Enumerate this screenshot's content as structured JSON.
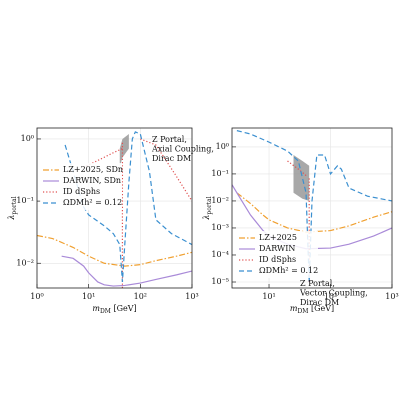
{
  "chart_data": [
    {
      "type": "line",
      "x_label": "mDM [GeV]",
      "y_label": "λportal",
      "log_x": true,
      "log_y": true,
      "grid": true,
      "legend": "center left",
      "annotation": [
        "Z Portal,",
        "Axial Coupling,",
        "Dirac DM"
      ],
      "xlim": [
        1,
        1000
      ],
      "xticks": [
        {
          "value": 1,
          "label": "10⁰"
        },
        {
          "value": 10,
          "label": "10¹"
        },
        {
          "value": 100,
          "label": "10²"
        },
        {
          "value": 1000,
          "label": "10³"
        }
      ],
      "ylim": [
        0.004,
        1.5
      ],
      "yticks": [
        {
          "value": 0.01,
          "label": "10⁻²"
        },
        {
          "value": 0.1,
          "label": "10⁻¹"
        },
        {
          "value": 1,
          "label": "10⁰"
        }
      ],
      "band": {
        "color": "#999999",
        "x": [
          40,
          45,
          60
        ],
        "upper": [
          0.7,
          1.0,
          1.2
        ],
        "lower": [
          0.35,
          0.5,
          0.7
        ]
      },
      "series": [
        {
          "name": "LZ+2025, SDn",
          "color": "#f0a030",
          "style": "dashdot",
          "x": [
            1,
            2,
            5,
            10,
            20,
            50,
            100,
            200,
            500,
            1000
          ],
          "values": [
            0.028,
            0.025,
            0.018,
            0.013,
            0.01,
            0.009,
            0.0095,
            0.011,
            0.013,
            0.015
          ]
        },
        {
          "name": "DARWIN, SDn",
          "color": "#a98ad8",
          "style": "solid",
          "x": [
            3,
            5,
            8,
            10,
            15,
            20,
            30,
            50,
            100,
            200,
            500,
            1000
          ],
          "values": [
            0.013,
            0.012,
            0.009,
            0.007,
            0.005,
            0.0045,
            0.0043,
            0.0044,
            0.0048,
            0.0055,
            0.0065,
            0.0075
          ]
        },
        {
          "name": "ID dSphs",
          "color": "#e05050",
          "style": "dotted",
          "x": [
            8,
            15,
            30,
            45,
            45,
            45,
            45,
            70,
            100,
            200,
            500,
            1000
          ],
          "values": [
            0.35,
            0.45,
            0.6,
            0.7,
            null,
            0.004,
            0.9,
            null,
            1.0,
            0.8,
            0.25,
            0.1
          ]
        },
        {
          "name": "ΩDMh² = 0.12",
          "color": "#3a8fd0",
          "style": "dashed",
          "x": [
            3.5,
            5,
            8,
            10,
            20,
            30,
            40,
            45,
            50,
            60,
            70,
            80,
            100,
            150,
            200,
            400,
            1000
          ],
          "values": [
            0.8,
            0.3,
            0.08,
            0.06,
            0.04,
            0.03,
            0.02,
            0.005,
            0.02,
            0.2,
            1,
            1.3,
            1.2,
            0.3,
            0.05,
            0.03,
            0.02
          ]
        }
      ]
    },
    {
      "type": "line",
      "x_label": "mDM [GeV]",
      "y_label": "λportal",
      "log_x": true,
      "log_y": true,
      "grid": true,
      "legend": "lower left",
      "annotation": [
        "Z Portal,",
        "Vector Coupling,",
        "Dirac DM"
      ],
      "xlim": [
        2.5,
        1000
      ],
      "xticks": [
        {
          "value": 10,
          "label": "10¹"
        },
        {
          "value": 100,
          "label": "10²"
        },
        {
          "value": 1000,
          "label": "10³"
        }
      ],
      "ylim": [
        6e-06,
        5
      ],
      "yticks": [
        {
          "value": 1e-05,
          "label": "10⁻⁵"
        },
        {
          "value": 0.0001,
          "label": "10⁻⁴"
        },
        {
          "value": 0.001,
          "label": "10⁻³"
        },
        {
          "value": 0.01,
          "label": "10⁻²"
        },
        {
          "value": 0.1,
          "label": "10⁻¹"
        },
        {
          "value": 1,
          "label": "10⁰"
        }
      ],
      "band": {
        "color": "#999999",
        "x": [
          25,
          35,
          45
        ],
        "upper": [
          0.5,
          0.3,
          0.2
        ],
        "lower": [
          0.02,
          0.012,
          0.01
        ]
      },
      "series": [
        {
          "name": "LZ+2025",
          "color": "#f0a030",
          "style": "dashdot",
          "x": [
            3,
            5,
            8,
            10,
            20,
            40,
            100,
            200,
            500,
            1000
          ],
          "values": [
            0.02,
            0.008,
            0.003,
            0.002,
            0.001,
            0.0007,
            0.0008,
            0.0012,
            0.0025,
            0.004
          ]
        },
        {
          "name": "DARWIN",
          "color": "#a98ad8",
          "style": "solid",
          "x": [
            2.5,
            3,
            5,
            8,
            10,
            20,
            40,
            100,
            200,
            500,
            1000
          ],
          "values": [
            0.04,
            0.02,
            0.003,
            0.0008,
            0.0005,
            0.00025,
            0.00017,
            0.00018,
            0.00025,
            0.0005,
            0.001
          ]
        },
        {
          "name": "ID dSphs",
          "color": "#e05050",
          "style": "dotted",
          "x": [
            20,
            30,
            42,
            45,
            45,
            45
          ],
          "values": [
            0.3,
            0.15,
            0.08,
            null,
            1e-05,
            0.07
          ]
        },
        {
          "name": "ΩDMh² = 0.12",
          "color": "#3a8fd0",
          "style": "dashed",
          "x": [
            3,
            5,
            10,
            20,
            30,
            40,
            45,
            50,
            60,
            80,
            100,
            130,
            150,
            200,
            400,
            1000
          ],
          "values": [
            4,
            3,
            1.5,
            0.7,
            0.3,
            0.02,
            1e-05,
            0.01,
            0.5,
            0.5,
            0.1,
            0.2,
            0.15,
            0.03,
            0.015,
            0.01
          ]
        }
      ]
    }
  ]
}
